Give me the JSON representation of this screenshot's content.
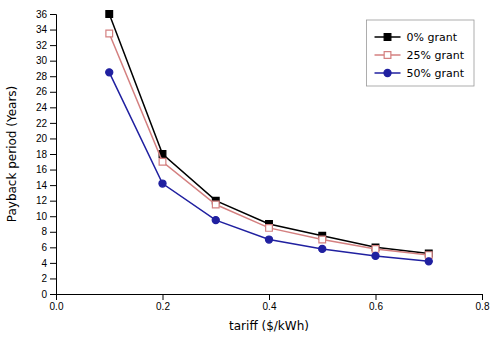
{
  "chart_data": {
    "type": "line",
    "x": [
      0.1,
      0.2,
      0.3,
      0.4,
      0.5,
      0.6,
      0.7
    ],
    "series": [
      {
        "name": "0% grant",
        "color": "#000000",
        "marker": "square",
        "values": [
          36.0,
          18.0,
          12.0,
          9.0,
          7.5,
          6.0,
          5.2
        ]
      },
      {
        "name": "25% grant",
        "color": "#d48080",
        "marker": "square-open",
        "values": [
          33.5,
          17.0,
          11.5,
          8.5,
          7.0,
          5.8,
          5.0
        ]
      },
      {
        "name": "50% grant",
        "color": "#2020a0",
        "marker": "circle",
        "values": [
          28.5,
          14.2,
          9.5,
          7.0,
          5.8,
          4.9,
          4.2
        ]
      }
    ],
    "xlim": [
      0.0,
      0.8
    ],
    "xticks": [
      {
        "value": 0.0,
        "label": "0.0"
      },
      0.2,
      0.4,
      0.6,
      0.8
    ],
    "ylim": [
      0,
      36
    ],
    "yticks": [
      0,
      2,
      4,
      6,
      8,
      10,
      12,
      14,
      16,
      18,
      20,
      22,
      24,
      26,
      28,
      30,
      32,
      34,
      36
    ],
    "xlabel": "tariff ($/kWh)",
    "ylabel": "Payback period (Years)",
    "legend": "upper right",
    "grid": false
  }
}
